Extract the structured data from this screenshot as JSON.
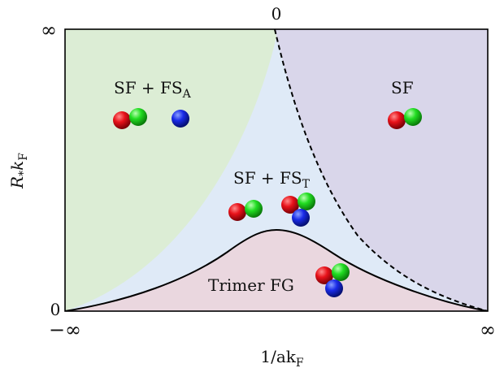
{
  "axes": {
    "top_tick": "0",
    "y_top": "∞",
    "y_bottom": "0",
    "x_left": "−∞",
    "x_right": "∞",
    "x_label": "1/ak",
    "x_label_sub": "F",
    "y_label": "R",
    "y_label_star": "*",
    "y_label_k": "k",
    "y_label_sub": "F"
  },
  "regions": {
    "sf_fsa": {
      "label": "SF + FS",
      "sub": "A"
    },
    "sf": {
      "label": "SF"
    },
    "sf_fst": {
      "label": "SF + FS",
      "sub": "T"
    },
    "trimer": {
      "label": "Trimer FG"
    }
  },
  "colors": {
    "green_region": "#dcedd5",
    "purple_region": "#d9d6ea",
    "blue_region": "#dfeaf7",
    "pink_region": "#ead7df",
    "red_ball": "#e8121a",
    "green_ball": "#22dd22",
    "blue_ball": "#1a2be8"
  }
}
